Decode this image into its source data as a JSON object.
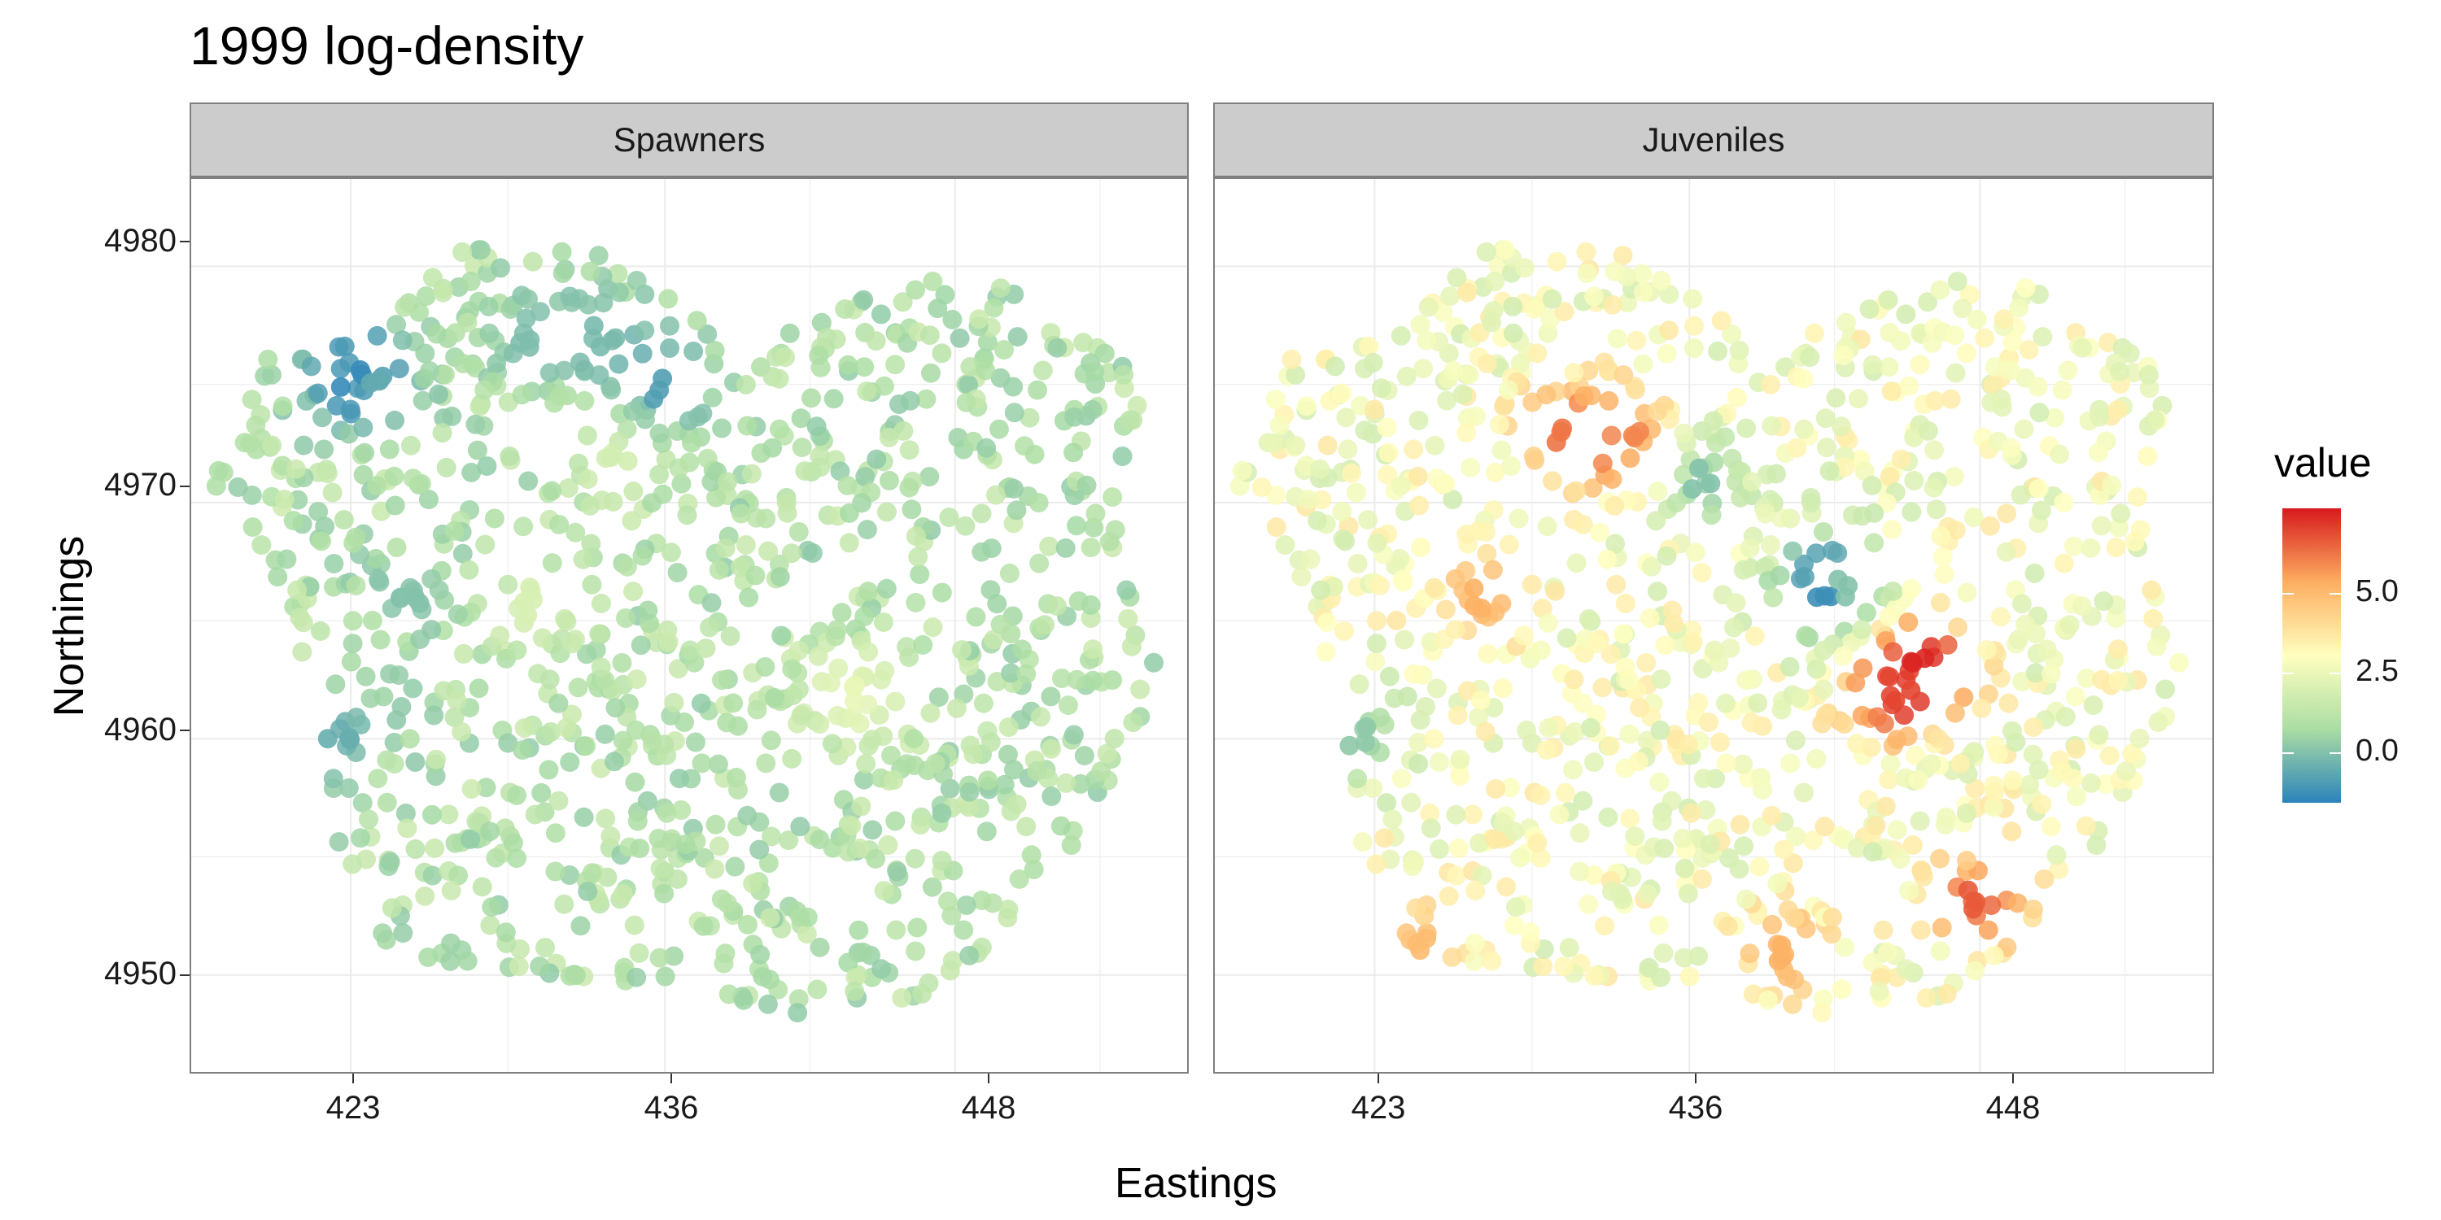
{
  "title": "1999 log-density",
  "colors": {
    "panel_border": "#7f7f7f",
    "strip_bg": "#cccccc",
    "grid": "#ebebeb",
    "scale": [
      "#2b83ba",
      "#abdda4",
      "#ffffbf",
      "#fdae61",
      "#d7191c"
    ]
  },
  "chart_data": {
    "type": "scatter",
    "title": "1999 log-density",
    "xlabel": "Eastings",
    "ylabel": "Northings",
    "xlim": [
      416.4,
      457.6
    ],
    "ylim": [
      4945.9,
      4983.7
    ],
    "xticks": [
      "423",
      "436",
      "448"
    ],
    "yticks": [
      "4950",
      "4960",
      "4970",
      "4980"
    ],
    "grid": true,
    "facets": [
      {
        "label": "Spawners",
        "dominant_value": 0.5,
        "hotspots": [
          {
            "x": 423,
            "y": 4975.3,
            "value": -1.8
          },
          {
            "x": 423.8,
            "y": 4975.5,
            "value": -1.0
          },
          {
            "x": 430.5,
            "y": 4977.0,
            "value": -0.5
          },
          {
            "x": 433.5,
            "y": 4977.0,
            "value": -0.6
          },
          {
            "x": 436.0,
            "y": 4974.9,
            "value": -1.3
          },
          {
            "x": 422.5,
            "y": 4960.3,
            "value": -0.9
          },
          {
            "x": 425.5,
            "y": 4966.0,
            "value": -0.4
          },
          {
            "x": 443.8,
            "y": 4961.8,
            "value": 2.0
          },
          {
            "x": 430.5,
            "y": 4965.5,
            "value": 1.5
          },
          {
            "x": 434.0,
            "y": 4972.0,
            "value": 1.4
          }
        ]
      },
      {
        "label": "Juveniles",
        "dominant_value": 2.3,
        "hotspots": [
          {
            "x": 431.0,
            "y": 4973.0,
            "value": 5.8
          },
          {
            "x": 433.5,
            "y": 4972.5,
            "value": 5.5
          },
          {
            "x": 445.5,
            "y": 4963.3,
            "value": 7.0
          },
          {
            "x": 444.7,
            "y": 4962.0,
            "value": 6.5
          },
          {
            "x": 448.0,
            "y": 4953.2,
            "value": 6.2
          },
          {
            "x": 427.5,
            "y": 4966.0,
            "value": 4.8
          },
          {
            "x": 440.0,
            "y": 4951.0,
            "value": 4.8
          },
          {
            "x": 425.0,
            "y": 4951.5,
            "value": 4.5
          },
          {
            "x": 441.5,
            "y": 4966.5,
            "value": -1.7
          },
          {
            "x": 442.5,
            "y": 4966.3,
            "value": -0.4
          },
          {
            "x": 422.3,
            "y": 4960.2,
            "value": -0.2
          },
          {
            "x": 436.5,
            "y": 4971.0,
            "value": -0.4
          }
        ]
      }
    ],
    "legend": {
      "title": "value",
      "ticks": [
        "0.0",
        "2.5",
        "5.0"
      ],
      "range": [
        -2.0,
        7.2
      ],
      "placement": "right"
    }
  }
}
